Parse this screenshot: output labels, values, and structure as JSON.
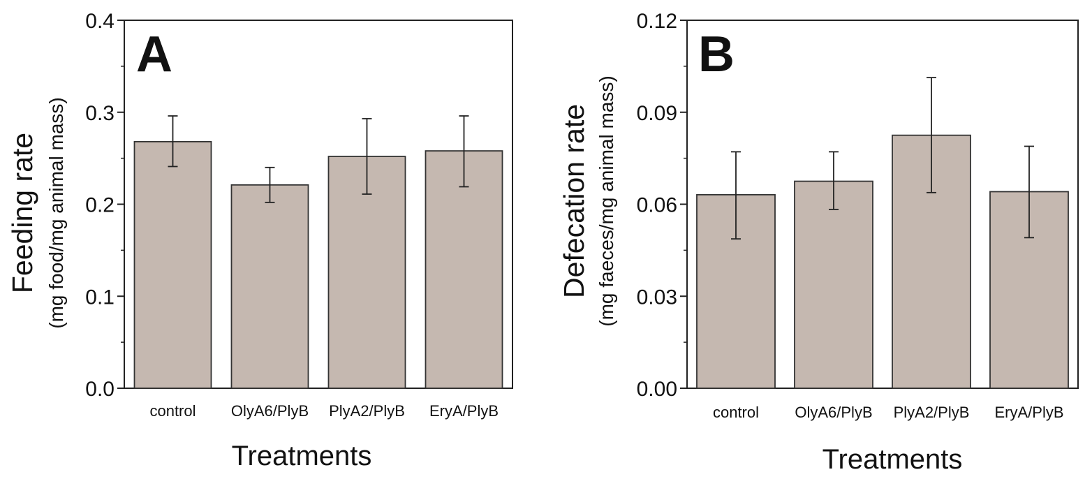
{
  "chart_data": [
    {
      "type": "bar",
      "panel_label": "A",
      "categories": [
        "control",
        "OlyA6/PlyB",
        "PlyA2/PlyB",
        "EryA/PlyB"
      ],
      "values": [
        0.268,
        0.221,
        0.252,
        0.258
      ],
      "error_low": [
        0.241,
        0.202,
        0.211,
        0.219
      ],
      "error_high": [
        0.296,
        0.24,
        0.293,
        0.296
      ],
      "title": "",
      "xlabel": "Treatments",
      "ylabel": "Feeding rate",
      "ylabel_sub": "(mg food/mg animal mass)",
      "ylim": [
        0,
        0.4
      ],
      "yticks": [
        "0.0",
        "0.1",
        "0.2",
        "0.3",
        "0.4"
      ],
      "ytick_values": [
        0,
        0.1,
        0.2,
        0.3,
        0.4
      ],
      "y_minor_step": 0.05,
      "bar_color": "#c5b8b0",
      "grid": false
    },
    {
      "type": "bar",
      "panel_label": "B",
      "categories": [
        "control",
        "OlyA6/PlyB",
        "PlyA2/PlyB",
        "EryA/PlyB"
      ],
      "values": [
        0.0631,
        0.0675,
        0.0825,
        0.0641
      ],
      "error_low": [
        0.0487,
        0.0583,
        0.0638,
        0.0491
      ],
      "error_high": [
        0.0771,
        0.0771,
        0.1013,
        0.0789
      ],
      "title": "",
      "xlabel": "Treatments",
      "ylabel": "Defecation rate",
      "ylabel_sub": "(mg faeces/mg animal mass)",
      "ylim": [
        0,
        0.12
      ],
      "yticks": [
        "0.00",
        "0.03",
        "0.06",
        "0.09",
        "0.12"
      ],
      "ytick_values": [
        0,
        0.03,
        0.06,
        0.09,
        0.12
      ],
      "y_minor_step": 0.015,
      "bar_color": "#c5b8b0",
      "grid": false
    }
  ]
}
